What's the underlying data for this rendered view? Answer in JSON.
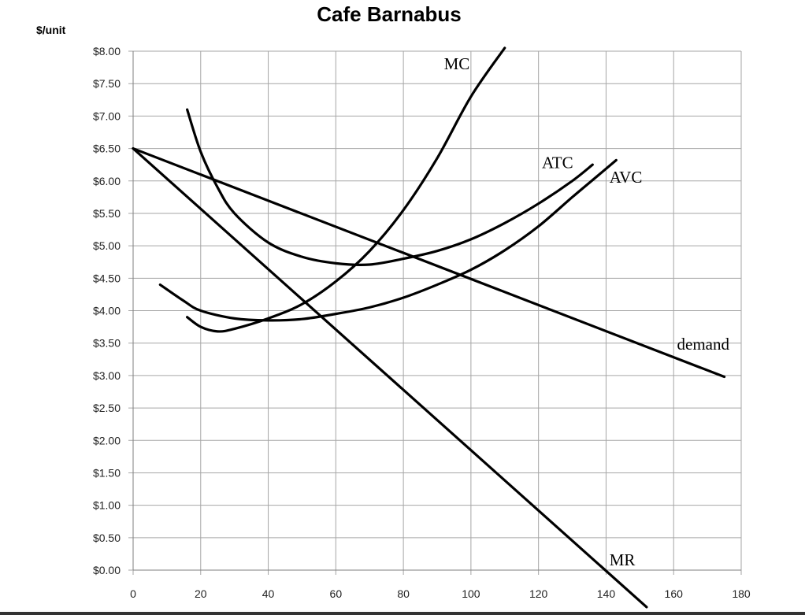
{
  "chart_data": {
    "type": "line",
    "title": "Cafe Barnabus",
    "ylabel": "$/unit",
    "xlabel": "",
    "xlim": [
      0,
      180
    ],
    "ylim": [
      0,
      8
    ],
    "grid": true,
    "x_ticks": [
      "0",
      "20",
      "40",
      "60",
      "80",
      "100",
      "120",
      "140",
      "160",
      "180"
    ],
    "y_ticks": [
      "$0.00",
      "$0.50",
      "$1.00",
      "$1.50",
      "$2.00",
      "$2.50",
      "$3.00",
      "$3.50",
      "$4.00",
      "$4.50",
      "$5.00",
      "$5.50",
      "$6.00",
      "$6.50",
      "$7.00",
      "$7.50",
      "$8.00"
    ],
    "series": [
      {
        "name": "MC",
        "points": [
          [
            16,
            3.9
          ],
          [
            20,
            3.75
          ],
          [
            25,
            3.68
          ],
          [
            30,
            3.72
          ],
          [
            40,
            3.88
          ],
          [
            50,
            4.1
          ],
          [
            60,
            4.45
          ],
          [
            70,
            4.92
          ],
          [
            80,
            5.55
          ],
          [
            90,
            6.35
          ],
          [
            100,
            7.3
          ],
          [
            110,
            8.05
          ]
        ]
      },
      {
        "name": "ATC",
        "points": [
          [
            16,
            7.1
          ],
          [
            20,
            6.45
          ],
          [
            25,
            5.9
          ],
          [
            30,
            5.5
          ],
          [
            40,
            5.05
          ],
          [
            50,
            4.83
          ],
          [
            60,
            4.73
          ],
          [
            70,
            4.71
          ],
          [
            80,
            4.8
          ],
          [
            90,
            4.92
          ],
          [
            100,
            5.1
          ],
          [
            110,
            5.35
          ],
          [
            120,
            5.65
          ],
          [
            130,
            6.0
          ],
          [
            136,
            6.25
          ]
        ]
      },
      {
        "name": "AVC",
        "points": [
          [
            8,
            4.4
          ],
          [
            15,
            4.15
          ],
          [
            20,
            4.0
          ],
          [
            30,
            3.88
          ],
          [
            40,
            3.85
          ],
          [
            50,
            3.87
          ],
          [
            60,
            3.95
          ],
          [
            70,
            4.05
          ],
          [
            80,
            4.2
          ],
          [
            90,
            4.4
          ],
          [
            100,
            4.63
          ],
          [
            110,
            4.93
          ],
          [
            120,
            5.3
          ],
          [
            130,
            5.75
          ],
          [
            138,
            6.1
          ],
          [
            143,
            6.32
          ]
        ]
      },
      {
        "name": "demand",
        "points": [
          [
            0,
            6.5
          ],
          [
            175,
            2.98
          ]
        ]
      },
      {
        "name": "MR",
        "points": [
          [
            0,
            6.5
          ],
          [
            152,
            -0.57
          ]
        ]
      }
    ],
    "annotations": [
      "MC",
      "ATC",
      "AVC",
      "demand",
      "MR"
    ]
  }
}
